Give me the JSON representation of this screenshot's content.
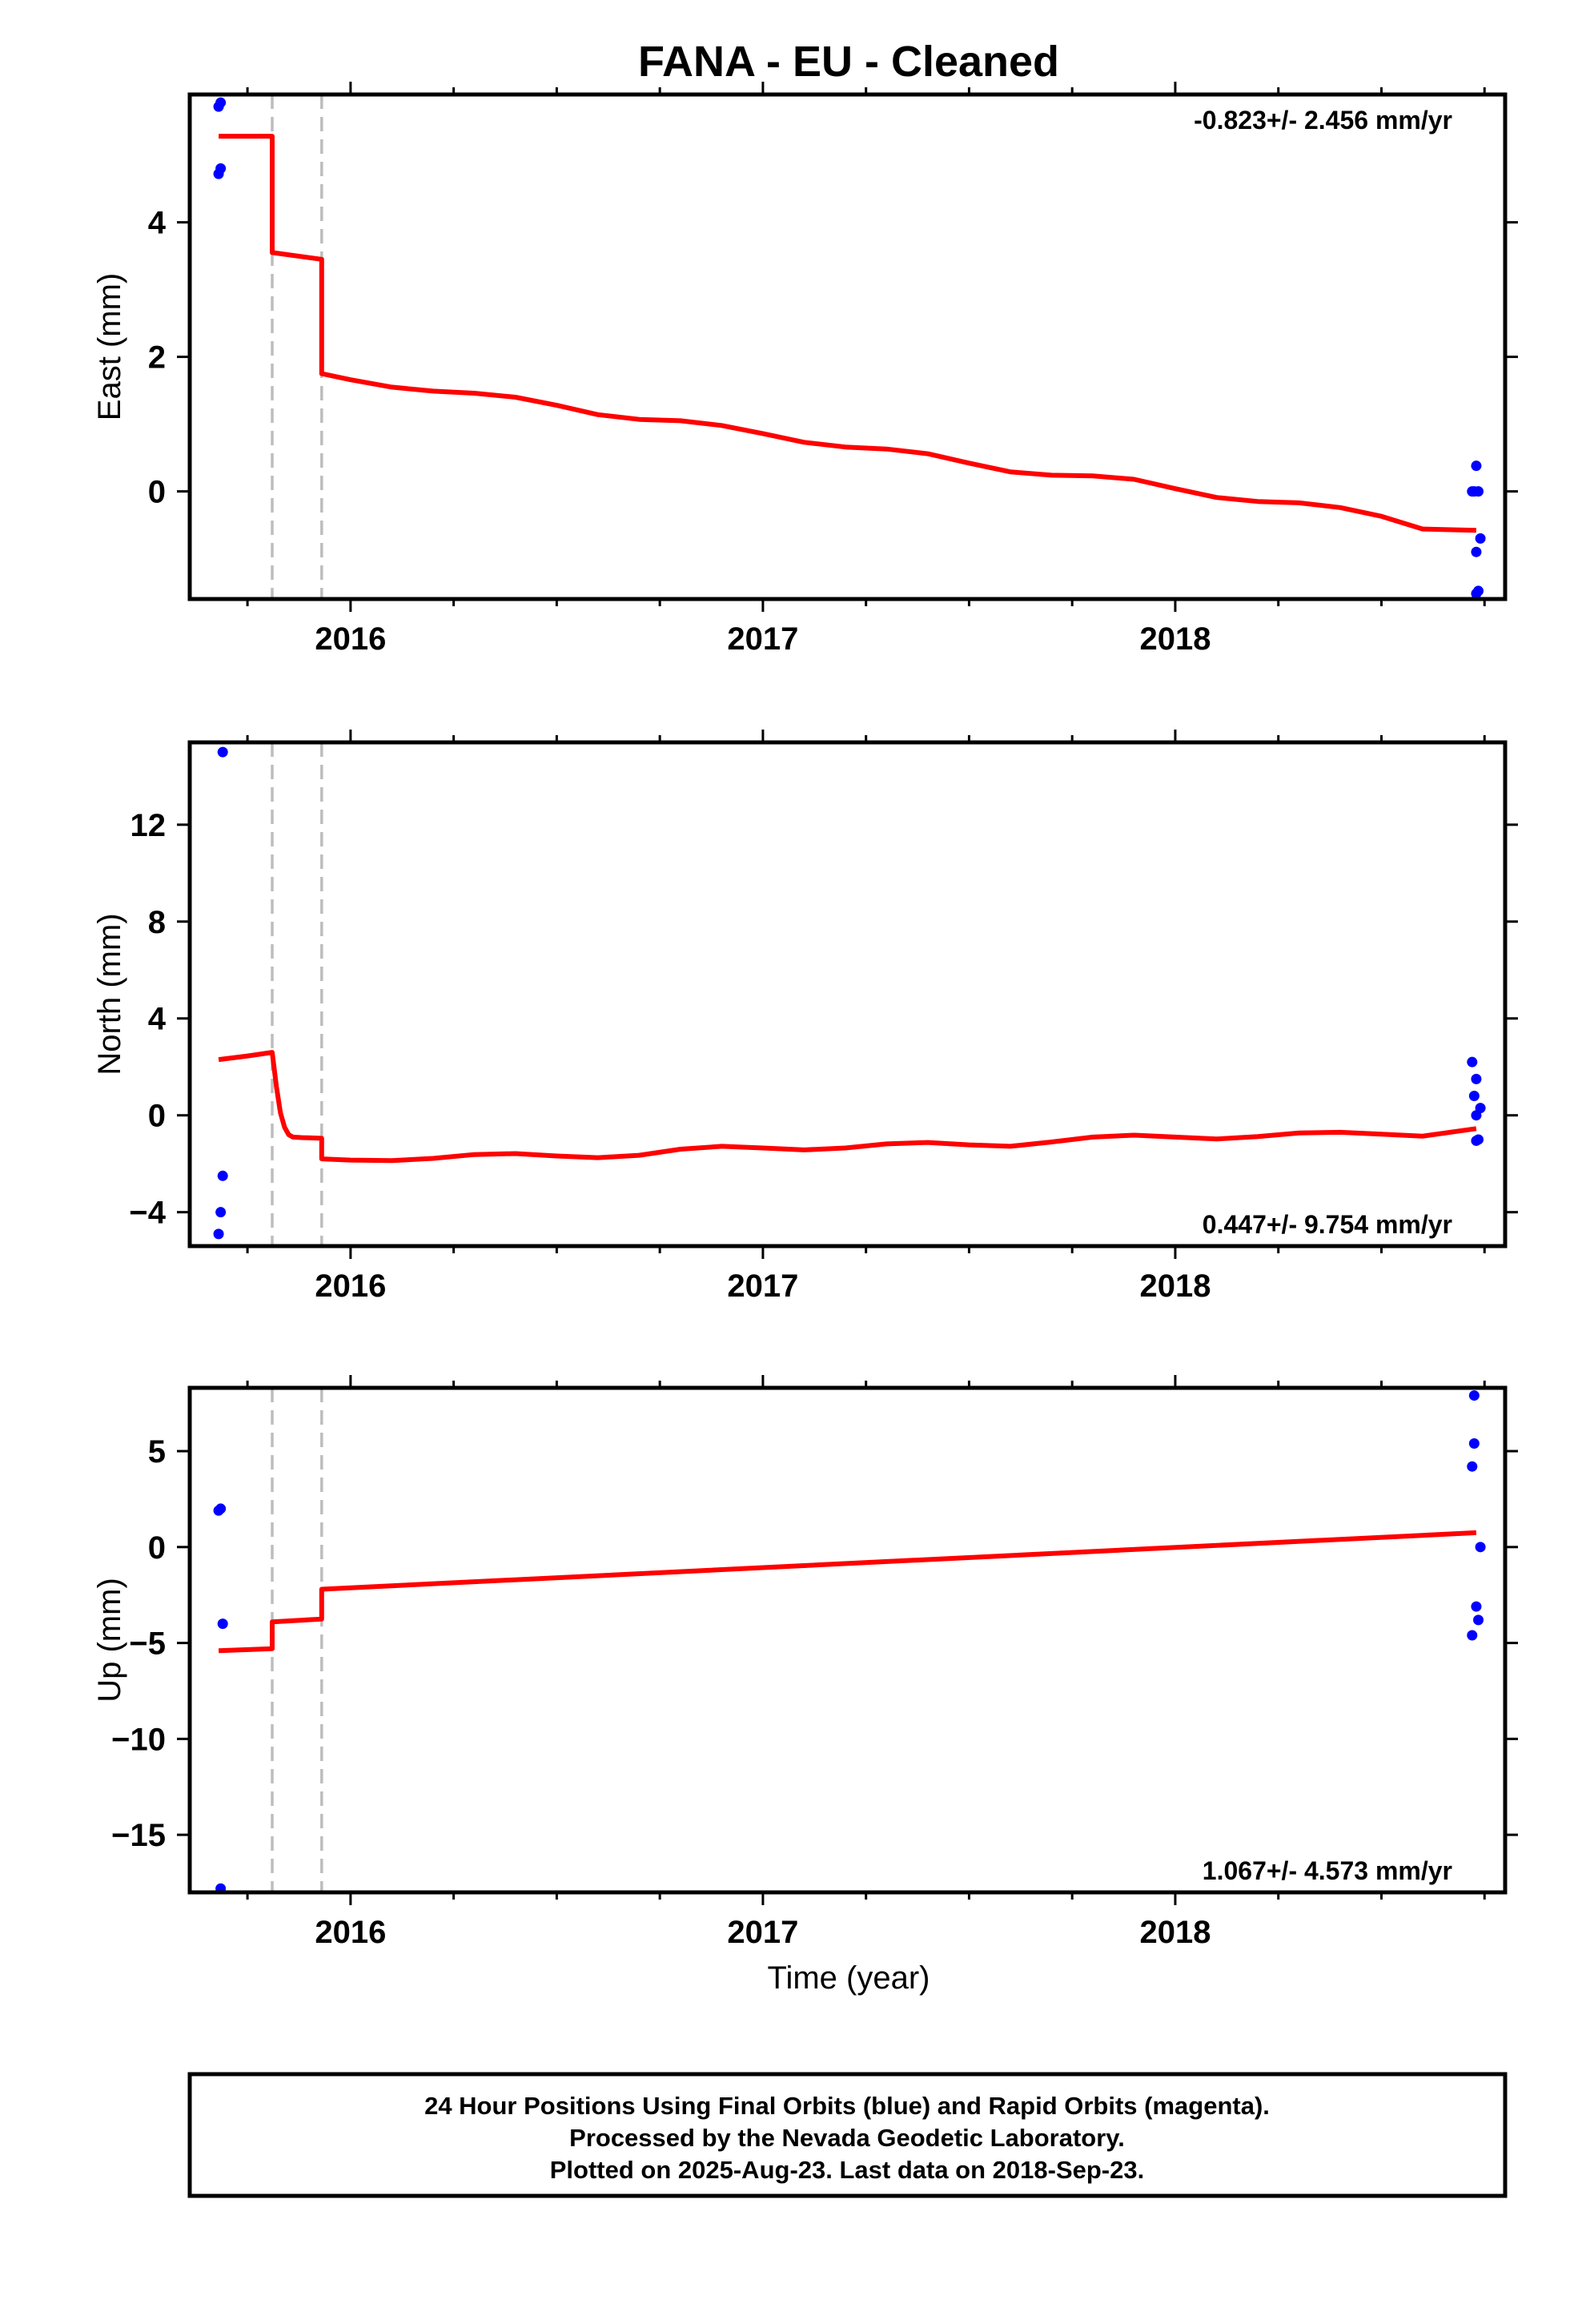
{
  "title": "FANA  - EU - Cleaned",
  "x_axis_label": "Time (year)",
  "footer": {
    "line1": "24 Hour Positions Using Final Orbits (blue) and Rapid Orbits (magenta).",
    "line2": "Processed by the Nevada Geodetic Laboratory.",
    "line3": "Plotted on 2025-Aug-23. Last data on 2018-Sep-23."
  },
  "colors": {
    "data": "#0000ff",
    "model": "#ff0000",
    "step": "#bdbdbd"
  },
  "chart_data": [
    {
      "type": "scatter",
      "panel": "east",
      "ylabel": "East (mm)",
      "rate": "-0.823+/- 2.456 mm/yr",
      "rate_position": "top-right",
      "xlim": [
        2015.61,
        2018.8
      ],
      "ylim": [
        -1.6,
        5.9
      ],
      "xticks": [
        2016,
        2017,
        2018
      ],
      "xtick_labels": [
        "2016",
        "2017",
        "2018"
      ],
      "yticks": [
        0,
        2,
        4
      ],
      "ytick_labels": [
        "0",
        "2",
        "4"
      ],
      "steps": [
        2015.81,
        2015.93
      ],
      "points": {
        "x": [
          2015.68,
          2015.685,
          2015.68,
          2015.685,
          2018.72,
          2018.725,
          2018.73,
          2018.735,
          2018.73,
          2018.74,
          2018.735,
          2018.73
        ],
        "y": [
          5.72,
          5.78,
          4.72,
          4.8,
          0.0,
          0.0,
          0.38,
          0.0,
          -0.9,
          -0.7,
          -1.48,
          -1.52
        ]
      },
      "model": {
        "x": [
          2015.68,
          2015.81,
          2015.81,
          2015.93,
          2015.93,
          2016.0,
          2016.1,
          2016.2,
          2016.3,
          2016.4,
          2016.5,
          2016.6,
          2016.7,
          2016.8,
          2016.9,
          2017.0,
          2017.1,
          2017.2,
          2017.3,
          2017.4,
          2017.5,
          2017.6,
          2017.7,
          2017.8,
          2017.9,
          2018.0,
          2018.1,
          2018.2,
          2018.3,
          2018.4,
          2018.5,
          2018.6,
          2018.73
        ],
        "y": [
          5.28,
          5.28,
          3.55,
          3.45,
          1.75,
          1.66,
          1.55,
          1.49,
          1.46,
          1.4,
          1.28,
          1.14,
          1.07,
          1.05,
          0.98,
          0.86,
          0.73,
          0.66,
          0.63,
          0.56,
          0.42,
          0.29,
          0.24,
          0.23,
          0.18,
          0.04,
          -0.09,
          -0.15,
          -0.17,
          -0.24,
          -0.37,
          -0.56,
          -0.58
        ]
      }
    },
    {
      "type": "scatter",
      "panel": "north",
      "ylabel": "North (mm)",
      "rate": "0.447+/- 9.754 mm/yr",
      "rate_position": "bottom-right",
      "xlim": [
        2015.61,
        2018.8
      ],
      "ylim": [
        -5.4,
        15.4
      ],
      "xticks": [
        2016,
        2017,
        2018
      ],
      "xtick_labels": [
        "2016",
        "2017",
        "2018"
      ],
      "yticks": [
        -4,
        0,
        4,
        8,
        12
      ],
      "ytick_labels": [
        "−4",
        "0",
        "4",
        "8",
        "12"
      ],
      "steps": [
        2015.81,
        2015.93
      ],
      "points": {
        "x": [
          2015.69,
          2015.69,
          2015.685,
          2015.68,
          2018.72,
          2018.73,
          2018.725,
          2018.74,
          2018.73,
          2018.735,
          2018.73
        ],
        "y": [
          15.0,
          -2.5,
          -4.0,
          -4.9,
          2.2,
          1.5,
          0.8,
          0.3,
          0.0,
          -1.0,
          -1.05
        ]
      },
      "model": {
        "x": [
          2015.68,
          2015.75,
          2015.81,
          2015.82,
          2015.83,
          2015.84,
          2015.85,
          2015.86,
          2015.88,
          2015.93,
          2015.93,
          2016.0,
          2016.1,
          2016.2,
          2016.3,
          2016.4,
          2016.5,
          2016.6,
          2016.7,
          2016.8,
          2016.9,
          2017.0,
          2017.1,
          2017.2,
          2017.3,
          2017.4,
          2017.5,
          2017.6,
          2017.7,
          2017.8,
          2017.9,
          2018.0,
          2018.1,
          2018.2,
          2018.3,
          2018.4,
          2018.5,
          2018.6,
          2018.73
        ],
        "y": [
          2.3,
          2.45,
          2.6,
          1.2,
          0.1,
          -0.5,
          -0.8,
          -0.9,
          -0.92,
          -0.95,
          -1.8,
          -1.85,
          -1.87,
          -1.78,
          -1.62,
          -1.58,
          -1.68,
          -1.75,
          -1.65,
          -1.4,
          -1.28,
          -1.35,
          -1.43,
          -1.35,
          -1.18,
          -1.12,
          -1.22,
          -1.28,
          -1.1,
          -0.9,
          -0.82,
          -0.9,
          -0.98,
          -0.88,
          -0.73,
          -0.7,
          -0.78,
          -0.86,
          -0.55
        ]
      }
    },
    {
      "type": "scatter",
      "panel": "up",
      "ylabel": "Up (mm)",
      "rate": "1.067+/- 4.573 mm/yr",
      "rate_position": "bottom-right",
      "xlim": [
        2015.61,
        2018.8
      ],
      "ylim": [
        -18.0,
        8.3
      ],
      "xticks": [
        2016,
        2017,
        2018
      ],
      "xtick_labels": [
        "2016",
        "2017",
        "2018"
      ],
      "yticks": [
        -15,
        -10,
        -5,
        0,
        5
      ],
      "ytick_labels": [
        "−15",
        "−10",
        "−5",
        "0",
        "5"
      ],
      "steps": [
        2015.81,
        2015.93
      ],
      "points": {
        "x": [
          2015.68,
          2015.685,
          2015.69,
          2015.685,
          2018.725,
          2018.725,
          2018.72,
          2018.74,
          2018.73,
          2018.735,
          2018.72
        ],
        "y": [
          1.9,
          2.0,
          -4.0,
          -17.8,
          7.9,
          5.4,
          4.2,
          0.0,
          -3.1,
          -3.8,
          -4.6
        ]
      },
      "model": {
        "x": [
          2015.68,
          2015.81,
          2015.81,
          2015.93,
          2015.93,
          2018.73
        ],
        "y": [
          -5.4,
          -5.3,
          -3.9,
          -3.75,
          -2.2,
          0.75
        ]
      }
    }
  ]
}
